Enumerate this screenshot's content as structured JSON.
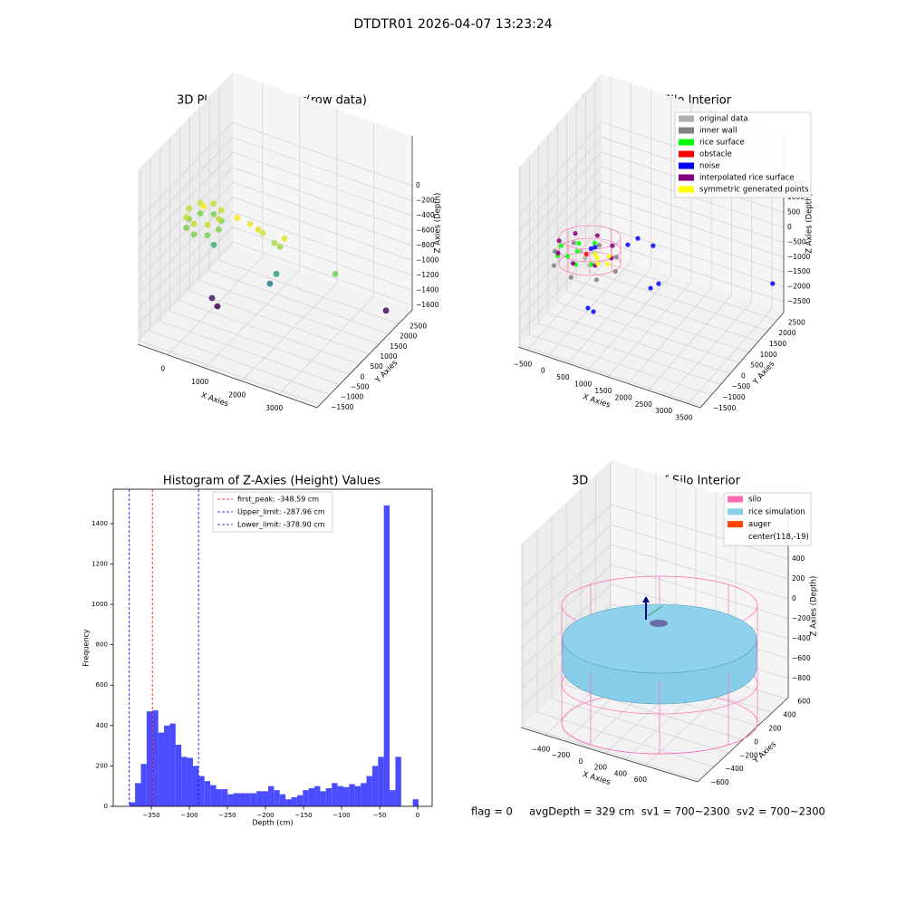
{
  "title": "DTDTR01 2026-04-07 13:23:24",
  "footer": "flag = 0     avgDepth = 329 cm  sv1 = 700~2300  sv2 = 700~2300",
  "chart_data": [
    {
      "type": "scatter3d",
      "title": "3D Plot of Silo Interior(row data)",
      "xlabel": "X Axies",
      "ylabel": "Y Axies",
      "zlabel": "Z Axies (Depth)",
      "xlim": [
        -800,
        4030
      ],
      "ylim": [
        -1640,
        3190
      ],
      "zlim": [
        -1660,
        670
      ],
      "xticks": [
        0,
        1000,
        2000,
        3000
      ],
      "yticks": [
        {
          "value": -1500,
          "label": "−1500"
        },
        {
          "value": -1000,
          "label": "−1000"
        },
        {
          "value": -500,
          "label": "−500"
        },
        0,
        500,
        1000,
        1500,
        2000,
        2500
      ],
      "zticks": [
        {
          "value": -1600,
          "label": "−1600"
        },
        {
          "value": -1400,
          "label": "−1400"
        },
        {
          "value": -1200,
          "label": "−1200"
        },
        {
          "value": -1000,
          "label": "−1000"
        },
        {
          "value": -800,
          "label": "−800"
        },
        {
          "value": -600,
          "label": "−600"
        },
        {
          "value": -400,
          "label": "−400"
        },
        {
          "value": -200,
          "label": "−200"
        },
        0
      ],
      "cmap": "viridis",
      "series": [
        {
          "x": [
            100,
            -16,
            -300,
            -584,
            -700,
            -584,
            -300,
            -16,
            100,
            -16,
            -300,
            -584,
            -700,
            -584,
            -300,
            -16,
            -300,
            601,
            944,
            1166,
            1287,
            1600,
            1871,
            1750,
            1653,
            1480,
            -80,
            65,
            3238,
            3580,
            -32
          ],
          "y": [
            775,
            1130,
            1275,
            1130,
            775,
            420,
            275,
            420,
            775,
            1130,
            1275,
            1130,
            775,
            420,
            275,
            420,
            775,
            775,
            775,
            775,
            775,
            775,
            775,
            775,
            775,
            775,
            775,
            775,
            775,
            2707,
            775
          ],
          "z": [
            -620,
            -620,
            -620,
            -620,
            -620,
            -620,
            -620,
            -620,
            -480,
            -480,
            -480,
            -480,
            -480,
            -480,
            -480,
            -480,
            -380,
            -375,
            -399,
            -433,
            -459,
            -537,
            -430,
            -561,
            -941,
            -1103,
            -1570,
            -1655,
            -663,
            -1618,
            -849
          ]
        }
      ]
    },
    {
      "type": "scatter3d",
      "title": "3D classify of Silo Interior",
      "xlabel": "X Axies",
      "ylabel": "Y Axies",
      "zlabel": "Z Axies (Depth)",
      "xlim": [
        -725,
        3795
      ],
      "ylim": [
        -1590,
        2850
      ],
      "zlim": [
        -2866,
        3140
      ],
      "xticks": [
        {
          "value": -500,
          "label": "−500"
        },
        0,
        500,
        1000,
        1500,
        2000,
        2500,
        3000,
        3500
      ],
      "yticks": [
        {
          "value": -1500,
          "label": "−1500"
        },
        {
          "value": -1000,
          "label": "−1000"
        },
        {
          "value": -500,
          "label": "−500"
        },
        0,
        500,
        1000,
        1500,
        2000,
        2500
      ],
      "zticks": [
        {
          "value": -2500,
          "label": "−2500"
        },
        {
          "value": -2000,
          "label": "−2000"
        },
        {
          "value": -1500,
          "label": "−1500"
        },
        {
          "value": -1000,
          "label": "−1000"
        },
        {
          "value": -500,
          "label": "−500"
        },
        0,
        500,
        1000,
        1500
      ],
      "legend": "upper right",
      "series": [
        {
          "name": "original data",
          "color": "#b0b0b0",
          "x": [
            -97,
            103,
            -297,
            3
          ],
          "y": [
            630,
            430,
            830,
            930
          ],
          "z": [
            -1200,
            -1200,
            -1200,
            -1200
          ]
        },
        {
          "name": "inner wall",
          "color": "#808080",
          "x": [
            653,
            433,
            -97,
            -627,
            -847,
            -627,
            -97,
            433
          ],
          "y": [
            630,
            1160,
            1380,
            1160,
            630,
            100,
            -120,
            100
          ],
          "z": [
            -1300,
            -1300,
            -1300,
            -1300,
            -1300,
            -1300,
            -1300,
            -1300
          ]
        },
        {
          "name": "rice surface",
          "color": "#00ff00",
          "x": [
            -697,
            -397,
            -97,
            -397,
            -97,
            203,
            -597,
            -297
          ],
          "y": [
            630,
            930,
            1130,
            330,
            130,
            330,
            230,
            630
          ],
          "z": [
            -1047,
            -1047,
            -1047,
            -1047,
            -1047,
            -1047,
            -1047,
            -1047
          ]
        },
        {
          "name": "obstacle",
          "color": "#ff0000",
          "x": [
            -47
          ],
          "y": [
            580
          ],
          "z": [
            -1000
          ]
        },
        {
          "name": "noise",
          "color": "#0000ff",
          "x": [
            3,
            53,
            961,
            1210,
            1589,
            1526,
            1725,
            -29,
            107,
            3727
          ],
          "y": [
            730,
            830,
            630,
            630,
            630,
            630,
            630,
            630,
            630,
            2406
          ],
          "z": [
            -900,
            -900,
            -266,
            62,
            -14,
            -1469,
            -1230,
            -2842,
            -2900,
            -1601
          ]
        },
        {
          "name": "interpolated rice surface",
          "color": "#800080",
          "x": [
            553,
            363,
            -97,
            -557,
            -747,
            -557,
            -97,
            363
          ],
          "y": [
            630,
            1090,
            1280,
            1090,
            630,
            170,
            -20,
            170
          ],
          "z": [
            -900,
            -900,
            -900,
            -900,
            -900,
            -900,
            -900,
            -900
          ]
        },
        {
          "name": "symmetric generated points",
          "color": "#ffff00",
          "x": [
            203,
            403,
            303,
            103,
            503
          ],
          "y": [
            630,
            830,
            430,
            730,
            530
          ],
          "z": [
            -1047,
            -1047,
            -1047,
            -1047,
            -1047
          ]
        }
      ]
    },
    {
      "type": "histogram",
      "title": "Histogram of Z-Axies (Height) Values",
      "xlabel": "Depth (cm)",
      "ylabel": "Frequency",
      "color": "#4c4cff",
      "xlim": [
        -400,
        19
      ],
      "ylim": [
        0,
        1570
      ],
      "xticks": [
        {
          "value": -350,
          "label": "−350"
        },
        {
          "value": -300,
          "label": "−300"
        },
        {
          "value": -250,
          "label": "−250"
        },
        {
          "value": -200,
          "label": "−200"
        },
        {
          "value": -150,
          "label": "−150"
        },
        {
          "value": -100,
          "label": "−100"
        },
        {
          "value": -50,
          "label": "−50"
        },
        0
      ],
      "yticks": [
        0,
        200,
        400,
        600,
        800,
        1000,
        1200,
        1400
      ],
      "bins": [
        -378.9,
        -371.3,
        -363.7,
        -356.1,
        -348.5,
        -340.9,
        -333.3,
        -325.7,
        -318.1,
        -310.5,
        -302.9,
        -295.3,
        -287.7,
        -280.1,
        -272.5,
        -264.9,
        -257.3,
        -249.7,
        -242.1,
        -234.5,
        -226.9,
        -219.3,
        -211.7,
        -204.1,
        -196.5,
        -188.9,
        -181.3,
        -173.7,
        -166.1,
        -158.5,
        -150.9,
        -143.3,
        -135.7,
        -128.1,
        -120.5,
        -112.9,
        -105.3,
        -97.7,
        -90.1,
        -82.5,
        -74.9,
        -67.3,
        -59.7,
        -52.1,
        -44.5,
        -36.9,
        -29.3,
        -21.7,
        -14.1,
        -6.5,
        1.1
      ],
      "values": [
        20,
        115,
        210,
        470,
        475,
        365,
        400,
        410,
        305,
        245,
        240,
        200,
        150,
        125,
        105,
        85,
        85,
        60,
        65,
        65,
        65,
        65,
        75,
        75,
        100,
        80,
        60,
        35,
        45,
        55,
        80,
        90,
        100,
        75,
        90,
        115,
        100,
        95,
        110,
        100,
        115,
        150,
        200,
        245,
        1490,
        80,
        245,
        0,
        0,
        35
      ],
      "legend": "upper center",
      "vlines": [
        {
          "name": "first_peak: -348.59 cm",
          "value": -348.59,
          "color": "#ff0000"
        },
        {
          "name": "Upper_limit: -287.96 cm",
          "value": -287.96,
          "color": "#0000ff"
        },
        {
          "name": "Lower_limit: -378.90 cm",
          "value": -378.9,
          "color": "#0000ff"
        }
      ]
    },
    {
      "type": "surface3d",
      "title": "3D simulation of Silo Interior",
      "xlabel": "X Axies",
      "ylabel": "Y Axies",
      "zlabel": "Z Axies (Depth)",
      "xlim": [
        -645,
        1128
      ],
      "ylim": [
        -625,
        620
      ],
      "zlim": [
        -991,
        845
      ],
      "xticks": [
        {
          "value": -400,
          "label": "−400"
        },
        {
          "value": -200,
          "label": "−200"
        },
        0,
        200,
        400,
        600
      ],
      "yticks": [
        {
          "value": -600,
          "label": "−600"
        },
        {
          "value": -400,
          "label": "−400"
        },
        {
          "value": -200,
          "label": "−200"
        },
        0,
        200,
        400,
        600
      ],
      "zticks": [
        {
          "value": -800,
          "label": "−800"
        },
        {
          "value": -600,
          "label": "−600"
        },
        {
          "value": -400,
          "label": "−400"
        },
        {
          "value": -200,
          "label": "−200"
        },
        0,
        200,
        400
      ],
      "legend": [
        {
          "name": "silo",
          "color": "#ff69b4"
        },
        {
          "name": "rice simulation",
          "color": "#87ceeb"
        },
        {
          "name": "auger",
          "color": "#ff4500"
        },
        {
          "name": "center(118,-19)"
        }
      ]
    }
  ]
}
